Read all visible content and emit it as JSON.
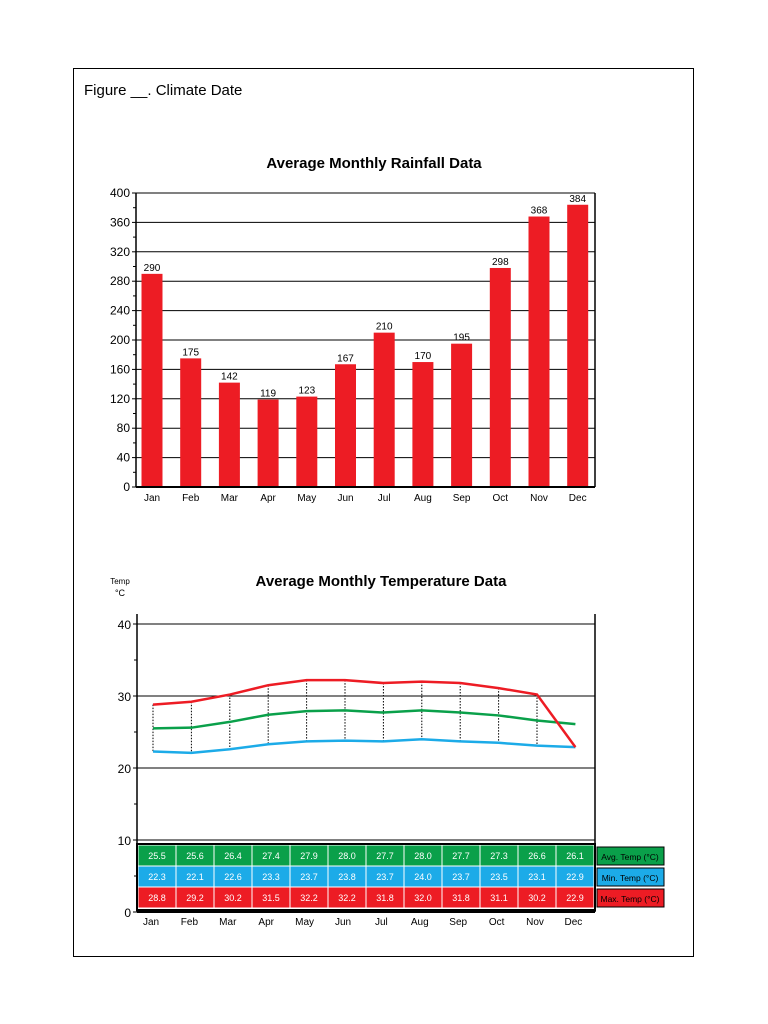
{
  "caption": "Figure __. Climate Date",
  "colors": {
    "rain_bar": "#ed1c24",
    "avg": "#0aa04a",
    "min": "#1cabe8",
    "max": "#ed1c24"
  },
  "chart_data": [
    {
      "type": "bar",
      "title": "Average Monthly Rainfall Data",
      "categories": [
        "Jan",
        "Feb",
        "Mar",
        "Apr",
        "May",
        "Jun",
        "Jul",
        "Aug",
        "Sep",
        "Oct",
        "Nov",
        "Dec"
      ],
      "values": [
        290,
        175,
        142,
        119,
        123,
        167,
        210,
        170,
        195,
        298,
        368,
        384
      ],
      "ylim": [
        0,
        400
      ],
      "yticks": [
        0,
        40,
        80,
        120,
        160,
        200,
        240,
        280,
        320,
        360,
        400
      ],
      "grid": true,
      "data_labels": true
    },
    {
      "type": "line",
      "title": "Average Monthly Temperature Data",
      "ylabel": "Temp",
      "yunit": "°C",
      "categories": [
        "Jan",
        "Feb",
        "Mar",
        "Apr",
        "May",
        "Jun",
        "Jul",
        "Aug",
        "Sep",
        "Oct",
        "Nov",
        "Dec"
      ],
      "ylim": [
        0,
        40
      ],
      "yticks": [
        0,
        10,
        20,
        30,
        40
      ],
      "grid": true,
      "series": [
        {
          "name": "Avg. Temp (°C)",
          "color": "#0aa04a",
          "values": [
            25.5,
            25.6,
            26.4,
            27.4,
            27.9,
            28.0,
            27.7,
            28.0,
            27.7,
            27.3,
            26.6,
            26.1
          ]
        },
        {
          "name": "Min. Temp (°C)",
          "color": "#1cabe8",
          "values": [
            22.3,
            22.1,
            22.6,
            23.3,
            23.7,
            23.8,
            23.7,
            24.0,
            23.7,
            23.5,
            23.1,
            22.9
          ]
        },
        {
          "name": "Max. Temp (°C)",
          "color": "#ed1c24",
          "values": [
            28.8,
            29.2,
            30.2,
            31.5,
            32.2,
            32.2,
            31.8,
            32.0,
            31.8,
            31.1,
            30.2,
            22.9
          ]
        }
      ]
    }
  ]
}
